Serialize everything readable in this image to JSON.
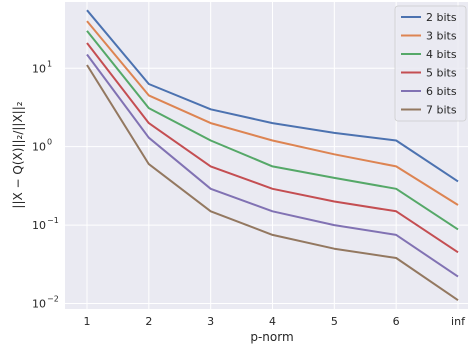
{
  "chart_data": {
    "type": "line",
    "title": "",
    "xlabel": "p-norm",
    "ylabel": "||X − Q(X)||₂/||X||₂",
    "y_scale": "log",
    "ylim": [
      0.0085,
      70
    ],
    "x_tick_labels": [
      "1",
      "2",
      "3",
      "4",
      "5",
      "6",
      "inf"
    ],
    "y_ticks": [
      {
        "value": 0.01,
        "base": "10",
        "exp": "−2"
      },
      {
        "value": 0.1,
        "base": "10",
        "exp": "−1"
      },
      {
        "value": 1,
        "base": "10",
        "exp": "0"
      },
      {
        "value": 10,
        "base": "10",
        "exp": "1"
      }
    ],
    "grid": true,
    "legend_position": "top-right",
    "colors": {
      "background": "#eaeaf2",
      "grid": "#ffffff"
    },
    "series": [
      {
        "name": "2 bits",
        "color": "#4c72b0",
        "values": [
          55,
          6.3,
          3.0,
          2.0,
          1.5,
          1.2,
          0.36
        ]
      },
      {
        "name": "3 bits",
        "color": "#dd8452",
        "values": [
          40,
          4.5,
          2.0,
          1.2,
          0.8,
          0.56,
          0.18
        ]
      },
      {
        "name": "4 bits",
        "color": "#55a868",
        "values": [
          30,
          3.1,
          1.2,
          0.56,
          0.4,
          0.29,
          0.088
        ]
      },
      {
        "name": "5 bits",
        "color": "#c44e52",
        "values": [
          21,
          2.0,
          0.56,
          0.29,
          0.2,
          0.15,
          0.045
        ]
      },
      {
        "name": "6 bits",
        "color": "#8172b3",
        "values": [
          15,
          1.3,
          0.29,
          0.15,
          0.1,
          0.075,
          0.022
        ]
      },
      {
        "name": "7 bits",
        "color": "#937860",
        "values": [
          11,
          0.6,
          0.15,
          0.075,
          0.05,
          0.038,
          0.011
        ]
      }
    ]
  }
}
